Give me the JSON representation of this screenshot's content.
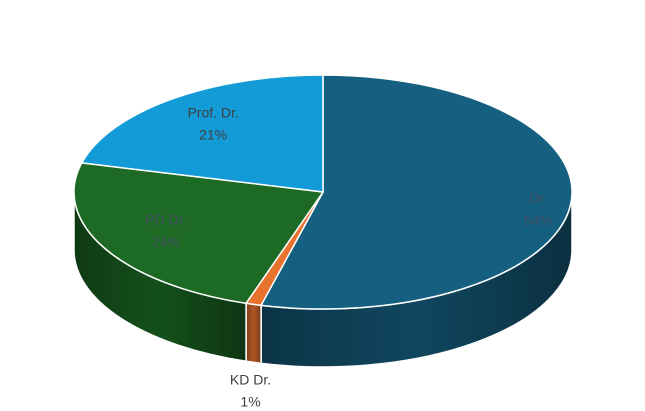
{
  "chart_data": {
    "type": "pie",
    "three_d": true,
    "title": "",
    "legend": "none",
    "slices": [
      {
        "name": "Dr.",
        "value": 54,
        "label": "54%",
        "color": "#155f80"
      },
      {
        "name": "KD Dr.",
        "value": 1,
        "label": "1%",
        "color": "#e8732f"
      },
      {
        "name": "PD Dr.",
        "value": 24,
        "label": "24%",
        "color": "#1c6a24"
      },
      {
        "name": "Prof. Dr.",
        "value": 21,
        "label": "21%",
        "color": "#139bd7"
      }
    ]
  }
}
